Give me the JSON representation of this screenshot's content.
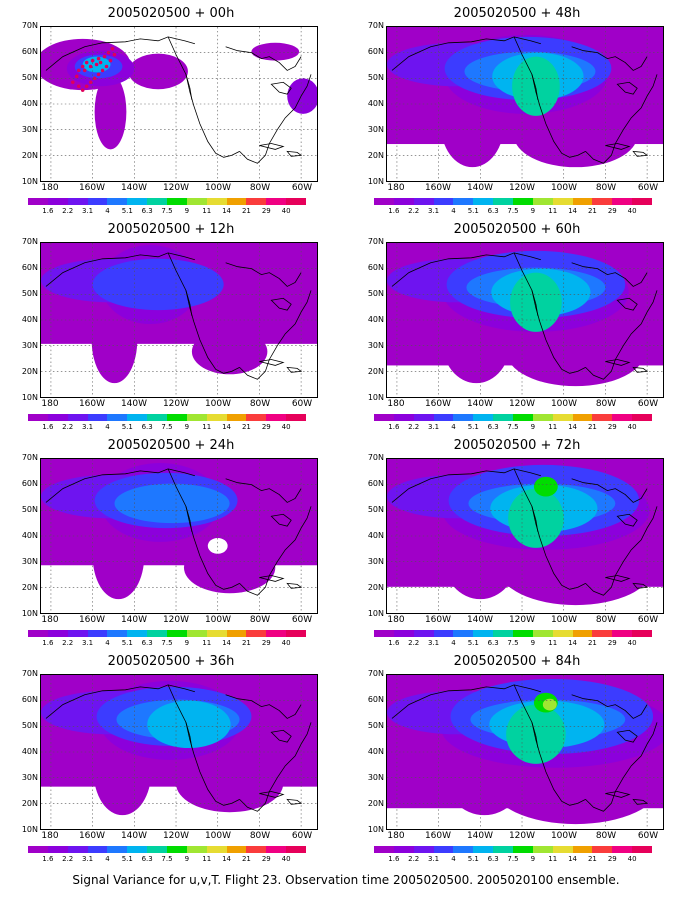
{
  "footer": "Signal Variance for u,v,T. Flight 23. Observation time 2005020500. 2005020100 ensemble.",
  "y_ticks": [
    "70N",
    "60N",
    "50N",
    "40N",
    "30N",
    "20N",
    "10N"
  ],
  "x_ticks": [
    "180",
    "160W",
    "140W",
    "120W",
    "100W",
    "80W",
    "60W"
  ],
  "colorbar": {
    "labels": [
      "1.6",
      "2.2",
      "3.1",
      "4",
      "5.1",
      "6.3",
      "7.5",
      "9",
      "11",
      "14",
      "21",
      "29",
      "40"
    ],
    "colors": [
      "#a000c8",
      "#8c00dc",
      "#6e14f0",
      "#3c3cff",
      "#1e78ff",
      "#00b4f0",
      "#00d2a0",
      "#00dc00",
      "#a0e632",
      "#e6dc32",
      "#f0a000",
      "#fa3c3c",
      "#f00082",
      "#e6005a"
    ]
  },
  "panels": [
    {
      "title": "2005020500 + 00h",
      "level": 0,
      "dots": true
    },
    {
      "title": "2005020500 + 48h",
      "level": 4
    },
    {
      "title": "2005020500 + 12h",
      "level": 1
    },
    {
      "title": "2005020500 + 60h",
      "level": 5
    },
    {
      "title": "2005020500 + 24h",
      "level": 2
    },
    {
      "title": "2005020500 + 72h",
      "level": 6
    },
    {
      "title": "2005020500 + 36h",
      "level": 3
    },
    {
      "title": "2005020500 + 84h",
      "level": 7
    }
  ]
}
